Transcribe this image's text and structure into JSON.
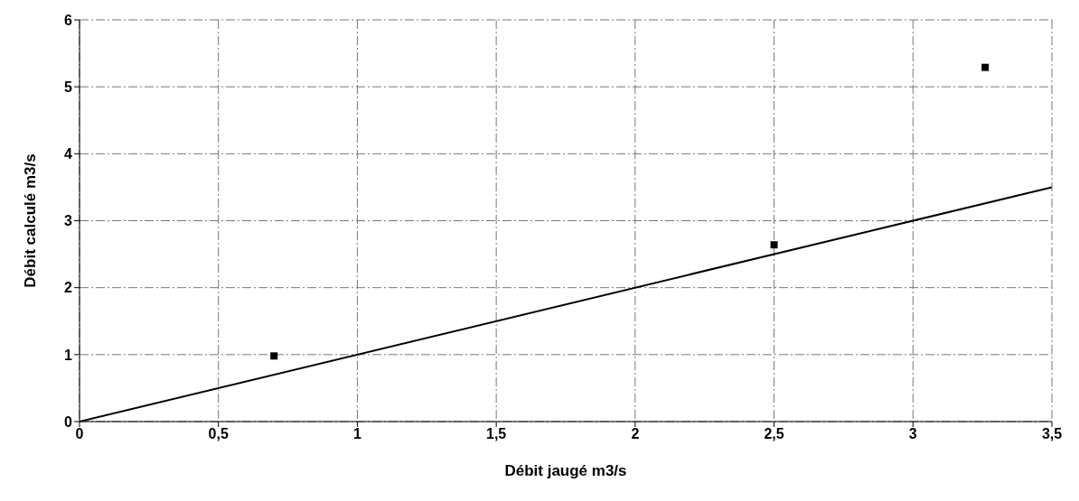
{
  "chart_data": {
    "type": "scatter",
    "xlabel": "Débit jaugé m3/s",
    "ylabel": "Débit  calculé m3/s",
    "series": [
      {
        "type": "scatter",
        "color": "#000000",
        "x": [
          0.7,
          2.5,
          3.26
        ],
        "values": [
          0.98,
          2.64,
          5.29
        ],
        "marker": "square"
      },
      {
        "type": "line",
        "color": "#000000",
        "x": [
          0,
          3.5
        ],
        "values": [
          0,
          3.5
        ],
        "marker": "none",
        "line_style": "solid"
      }
    ],
    "xlim": [
      0,
      3.5
    ],
    "xticks": [
      0,
      {
        "value": 0.5,
        "label": "0,5"
      },
      1,
      {
        "value": 1.5,
        "label": "1,5"
      },
      2,
      {
        "value": 2.5,
        "label": "2,5"
      },
      3,
      {
        "value": 3.5,
        "label": "3,5"
      }
    ],
    "ylim": [
      0,
      6
    ],
    "yticks": [
      0,
      1,
      2,
      3,
      4,
      5,
      6
    ],
    "grid": true
  }
}
